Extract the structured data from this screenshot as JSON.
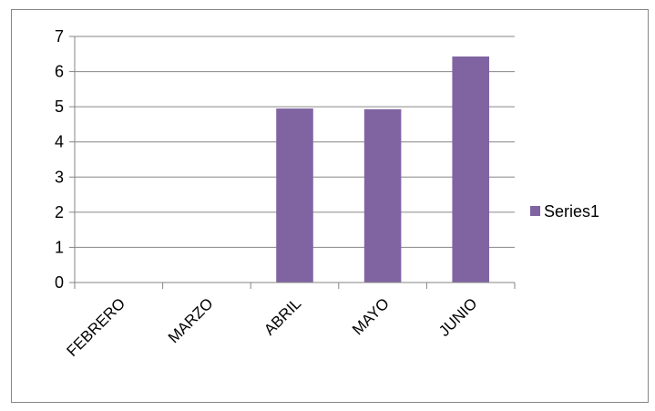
{
  "chart_data": {
    "type": "bar",
    "categories": [
      "FEBRERO",
      "MARZO",
      "ABRIL",
      "MAYO",
      "JUNIO"
    ],
    "series": [
      {
        "name": "Series1",
        "values": [
          0,
          0,
          4.95,
          4.93,
          6.43
        ],
        "color": "#8064a2"
      }
    ],
    "ylim": [
      0,
      7
    ],
    "yticks": [
      0,
      1,
      2,
      3,
      4,
      5,
      6,
      7
    ],
    "grid": true,
    "legend_position": "right",
    "title": "",
    "xlabel": "",
    "ylabel": ""
  }
}
